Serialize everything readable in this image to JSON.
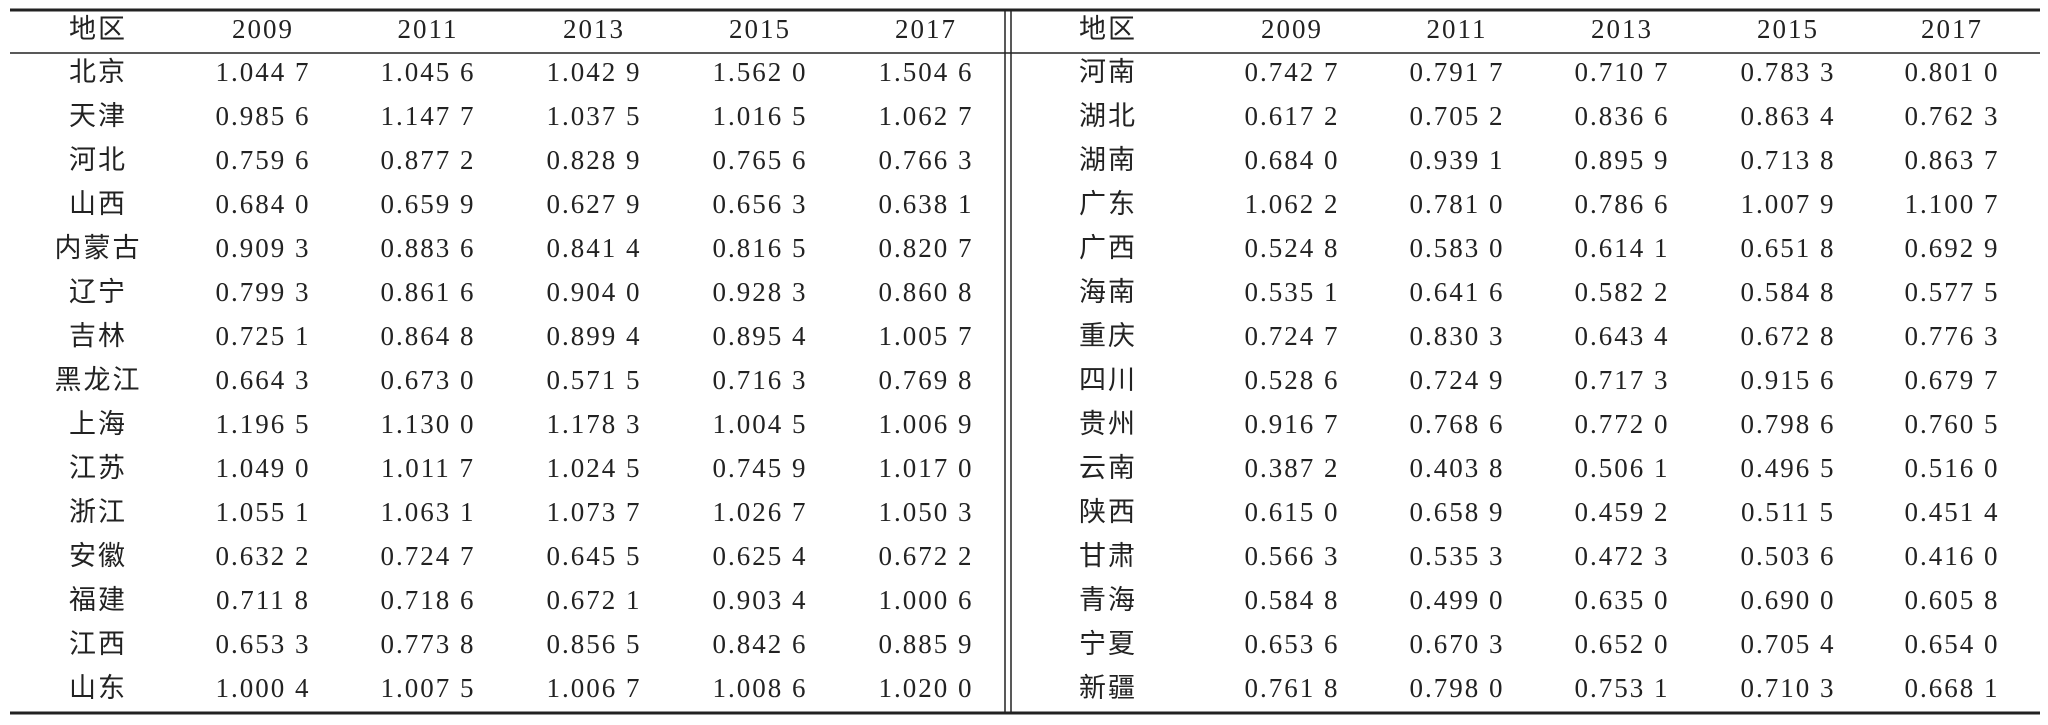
{
  "table": {
    "header": [
      "地区",
      "2009",
      "2011",
      "2013",
      "2015",
      "2017",
      "地区",
      "2009",
      "2011",
      "2013",
      "2015",
      "2017"
    ],
    "rows": [
      [
        "北京",
        "1.044 7",
        "1.045 6",
        "1.042 9",
        "1.562 0",
        "1.504 6",
        "河南",
        "0.742 7",
        "0.791 7",
        "0.710 7",
        "0.783 3",
        "0.801 0"
      ],
      [
        "天津",
        "0.985 6",
        "1.147 7",
        "1.037 5",
        "1.016 5",
        "1.062 7",
        "湖北",
        "0.617 2",
        "0.705 2",
        "0.836 6",
        "0.863 4",
        "0.762 3"
      ],
      [
        "河北",
        "0.759 6",
        "0.877 2",
        "0.828 9",
        "0.765 6",
        "0.766 3",
        "湖南",
        "0.684 0",
        "0.939 1",
        "0.895 9",
        "0.713 8",
        "0.863 7"
      ],
      [
        "山西",
        "0.684 0",
        "0.659 9",
        "0.627 9",
        "0.656 3",
        "0.638 1",
        "广东",
        "1.062 2",
        "0.781 0",
        "0.786 6",
        "1.007 9",
        "1.100 7"
      ],
      [
        "内蒙古",
        "0.909 3",
        "0.883 6",
        "0.841 4",
        "0.816 5",
        "0.820 7",
        "广西",
        "0.524 8",
        "0.583 0",
        "0.614 1",
        "0.651 8",
        "0.692 9"
      ],
      [
        "辽宁",
        "0.799 3",
        "0.861 6",
        "0.904 0",
        "0.928 3",
        "0.860 8",
        "海南",
        "0.535 1",
        "0.641 6",
        "0.582 2",
        "0.584 8",
        "0.577 5"
      ],
      [
        "吉林",
        "0.725 1",
        "0.864 8",
        "0.899 4",
        "0.895 4",
        "1.005 7",
        "重庆",
        "0.724 7",
        "0.830 3",
        "0.643 4",
        "0.672 8",
        "0.776 3"
      ],
      [
        "黑龙江",
        "0.664 3",
        "0.673 0",
        "0.571 5",
        "0.716 3",
        "0.769 8",
        "四川",
        "0.528 6",
        "0.724 9",
        "0.717 3",
        "0.915 6",
        "0.679 7"
      ],
      [
        "上海",
        "1.196 5",
        "1.130 0",
        "1.178 3",
        "1.004 5",
        "1.006 9",
        "贵州",
        "0.916 7",
        "0.768 6",
        "0.772 0",
        "0.798 6",
        "0.760 5"
      ],
      [
        "江苏",
        "1.049 0",
        "1.011 7",
        "1.024 5",
        "0.745 9",
        "1.017 0",
        "云南",
        "0.387 2",
        "0.403 8",
        "0.506 1",
        "0.496 5",
        "0.516 0"
      ],
      [
        "浙江",
        "1.055 1",
        "1.063 1",
        "1.073 7",
        "1.026 7",
        "1.050 3",
        "陕西",
        "0.615 0",
        "0.658 9",
        "0.459 2",
        "0.511 5",
        "0.451 4"
      ],
      [
        "安徽",
        "0.632 2",
        "0.724 7",
        "0.645 5",
        "0.625 4",
        "0.672 2",
        "甘肃",
        "0.566 3",
        "0.535 3",
        "0.472 3",
        "0.503 6",
        "0.416 0"
      ],
      [
        "福建",
        "0.711 8",
        "0.718 6",
        "0.672 1",
        "0.903 4",
        "1.000 6",
        "青海",
        "0.584 8",
        "0.499 0",
        "0.635 0",
        "0.690 0",
        "0.605 8"
      ],
      [
        "江西",
        "0.653 3",
        "0.773 8",
        "0.856 5",
        "0.842 6",
        "0.885 9",
        "宁夏",
        "0.653 6",
        "0.670 3",
        "0.652 0",
        "0.705 4",
        "0.654 0"
      ],
      [
        "山东",
        "1.000 4",
        "1.007 5",
        "1.006 7",
        "1.008 6",
        "1.020 0",
        "新疆",
        "0.761 8",
        "0.798 0",
        "0.753 1",
        "0.710 3",
        "0.668 1"
      ]
    ]
  }
}
